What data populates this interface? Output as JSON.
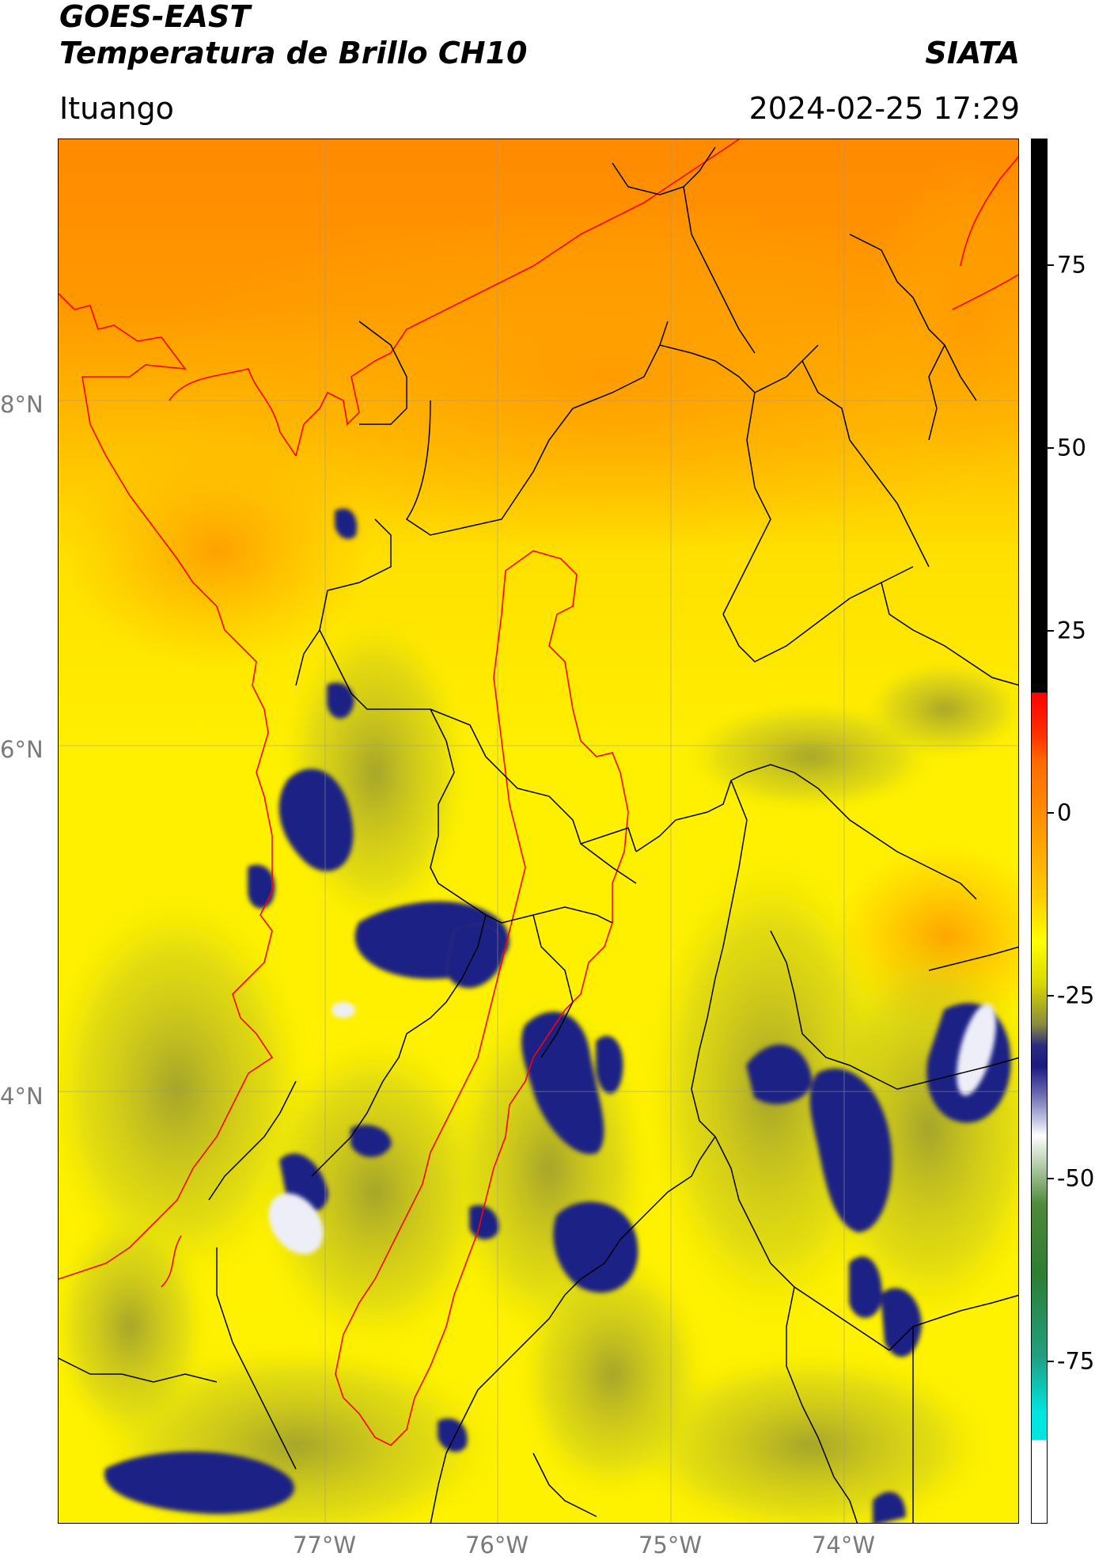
{
  "header": {
    "title_line1": "GOES-EAST",
    "title_line2": "Temperatura de Brillo CH10",
    "org": "SIATA",
    "location": "Ituango",
    "datetime": "2024-02-25 17:29"
  },
  "axes": {
    "latitude_labels": [
      "8°N",
      "6°N",
      "4°N"
    ],
    "longitude_labels": [
      "77°W",
      "76°W",
      "75°W",
      "74°W"
    ]
  },
  "colorbar": {
    "ticks": [
      "75",
      "50",
      "25",
      "0",
      "-25",
      "-50",
      "-75"
    ],
    "colors": {
      "black": "#000000",
      "red": "#ff0000",
      "orange": "#ff8c00",
      "yellow": "#ffff00",
      "olive": "#8a8a30",
      "navy": "#1a1a80",
      "white": "#ffffff",
      "green": "#2e7d32",
      "cyan": "#00e5e0"
    }
  },
  "map": {
    "basemap_colors": {
      "sea_orange": "#ff8f00",
      "land_yellow": "#ffe600",
      "cloud_olive": "#9a9a35",
      "cloud_navy": "#1f2385",
      "cloud_white": "#eaeaf5",
      "coast_red": "#ff0000",
      "border_black": "#000000",
      "grid_gray": "#9a9a9a"
    }
  }
}
